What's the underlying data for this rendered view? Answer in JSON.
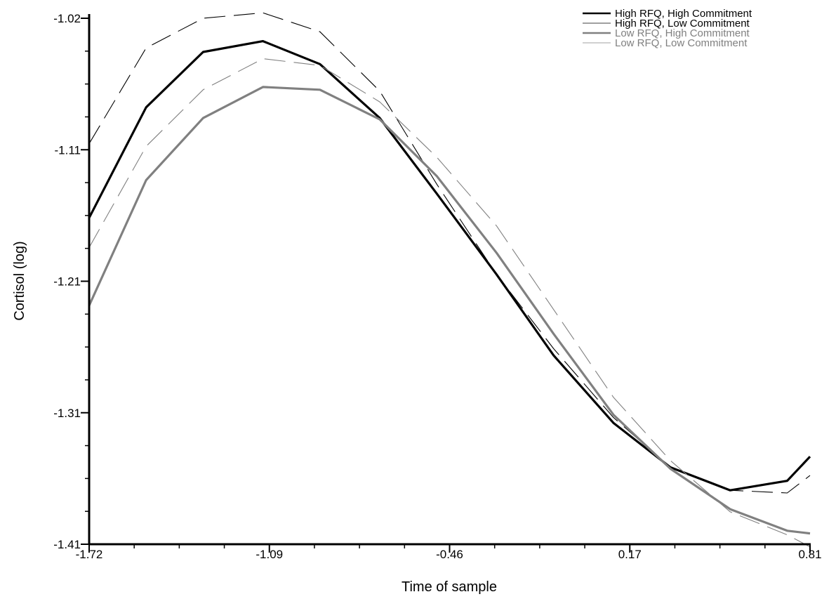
{
  "chart_data": {
    "type": "line",
    "title": "",
    "xlabel": "Time of sample",
    "ylabel": "Cortisol (log)",
    "xlim": [
      -1.72,
      0.81
    ],
    "ylim": [
      -1.41,
      -1.02
    ],
    "x_ticks": [
      "-1.72",
      "-1.09",
      "-0.46",
      "0.17",
      "0.81"
    ],
    "y_ticks": [
      "-1.02",
      "-1.11",
      "-1.21",
      "-1.31",
      "-1.41"
    ],
    "grid": false,
    "legend_position": "top-right",
    "x": [
      -1.72,
      -1.52,
      -1.32,
      -1.11,
      -0.91,
      -0.7,
      -0.5,
      -0.29,
      -0.09,
      0.12,
      0.32,
      0.53,
      0.73,
      0.81
    ],
    "series": [
      {
        "name": "High RFQ, High Commitment",
        "color": "#000000",
        "style": "solid-thick",
        "values": [
          -1.168,
          -1.086,
          -1.045,
          -1.037,
          -1.054,
          -1.094,
          -1.15,
          -1.21,
          -1.27,
          -1.32,
          -1.353,
          -1.37,
          -1.363,
          -1.345
        ]
      },
      {
        "name": "High RFQ, Low Commitment",
        "color": "#000000",
        "style": "dashed-thin",
        "values": [
          -1.113,
          -1.042,
          -1.02,
          -1.016,
          -1.03,
          -1.074,
          -1.143,
          -1.21,
          -1.265,
          -1.316,
          -1.353,
          -1.37,
          -1.372,
          -1.359
        ]
      },
      {
        "name": "Low RFQ, High Commitment",
        "color": "#808080",
        "style": "solid-thick",
        "values": [
          -1.233,
          -1.14,
          -1.094,
          -1.071,
          -1.073,
          -1.095,
          -1.137,
          -1.194,
          -1.254,
          -1.314,
          -1.354,
          -1.384,
          -1.4,
          -1.402
        ]
      },
      {
        "name": "Low RFQ, Low Commitment",
        "color": "#808080",
        "style": "dashed-thin",
        "values": [
          -1.19,
          -1.115,
          -1.073,
          -1.05,
          -1.055,
          -1.082,
          -1.123,
          -1.174,
          -1.236,
          -1.301,
          -1.348,
          -1.386,
          -1.403,
          -1.412
        ]
      }
    ]
  }
}
